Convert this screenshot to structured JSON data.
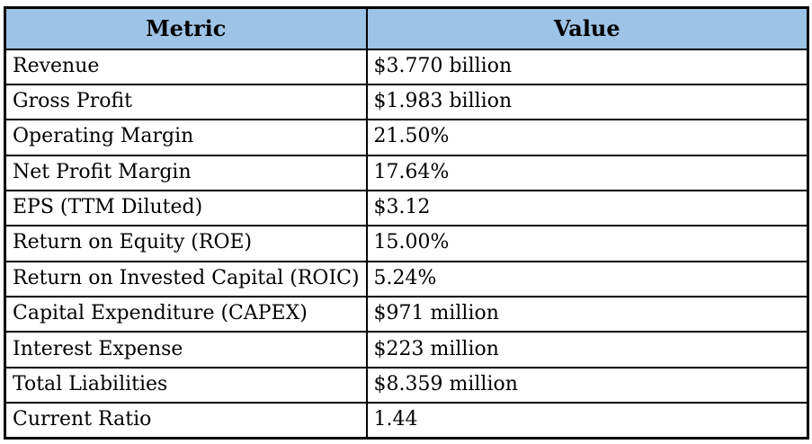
{
  "table": {
    "columns": [
      {
        "label": "Metric"
      },
      {
        "label": "Value"
      }
    ],
    "rows": [
      {
        "metric": "Revenue",
        "value": "$3.770 billion"
      },
      {
        "metric": "Gross Profit",
        "value": "$1.983 billion"
      },
      {
        "metric": "Operating Margin",
        "value": "21.50%"
      },
      {
        "metric": "Net Profit Margin",
        "value": "17.64%"
      },
      {
        "metric": "EPS (TTM Diluted)",
        "value": "$3.12"
      },
      {
        "metric": "Return on Equity (ROE)",
        "value": "15.00%"
      },
      {
        "metric": "Return on Invested Capital (ROIC)",
        "value": "5.24%"
      },
      {
        "metric": "Capital Expenditure (CAPEX)",
        "value": "$971 million"
      },
      {
        "metric": "Interest Expense",
        "value": "$223 million"
      },
      {
        "metric": "Total Liabilities",
        "value": "$8.359 million"
      },
      {
        "metric": "Current Ratio",
        "value": "1.44"
      }
    ]
  },
  "colors": {
    "header_bg": "#9DC3E6",
    "border": "#000000",
    "text": "#000000"
  }
}
